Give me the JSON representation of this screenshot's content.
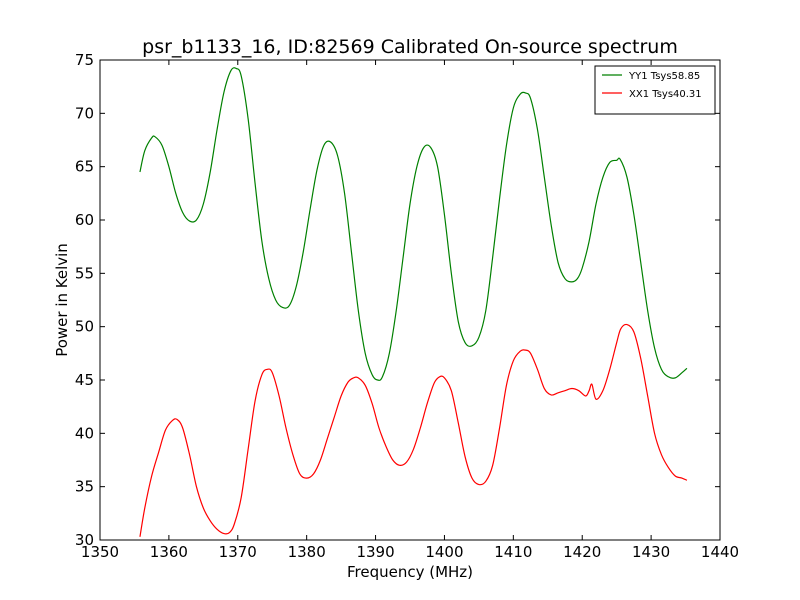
{
  "chart_data": {
    "type": "line",
    "title": "psr_b1133_16, ID:82569 Calibrated On-source spectrum",
    "xlabel": "Frequency (MHz)",
    "ylabel": "Power in Kelvin",
    "xlim": [
      1350,
      1440
    ],
    "ylim": [
      30,
      75
    ],
    "xticks": [
      1350,
      1360,
      1370,
      1380,
      1390,
      1400,
      1410,
      1420,
      1430,
      1440
    ],
    "yticks": [
      30,
      35,
      40,
      45,
      50,
      55,
      60,
      65,
      70,
      75
    ],
    "grid": false,
    "legend_position": "top-right",
    "series": [
      {
        "name": "YY1 Tsys58.85",
        "color": "#008000",
        "x": [
          1355.8,
          1356.5,
          1357.5,
          1358.0,
          1359.0,
          1360.0,
          1361.0,
          1362.0,
          1363.0,
          1364.0,
          1365.0,
          1366.0,
          1367.0,
          1368.0,
          1369.0,
          1369.8,
          1370.5,
          1371.5,
          1372.5,
          1373.5,
          1374.5,
          1375.5,
          1376.5,
          1377.5,
          1378.5,
          1379.5,
          1380.5,
          1381.5,
          1382.5,
          1383.5,
          1384.5,
          1385.5,
          1386.5,
          1387.5,
          1388.5,
          1389.5,
          1390.3,
          1391.0,
          1392.0,
          1393.0,
          1394.0,
          1395.0,
          1396.0,
          1397.0,
          1398.0,
          1399.0,
          1400.0,
          1401.0,
          1402.0,
          1403.0,
          1404.0,
          1405.0,
          1406.0,
          1407.0,
          1408.0,
          1409.0,
          1410.0,
          1411.0,
          1411.8,
          1412.5,
          1413.5,
          1414.5,
          1415.5,
          1416.5,
          1417.5,
          1418.5,
          1419.3,
          1420.0,
          1421.0,
          1422.0,
          1423.0,
          1424.0,
          1425.0,
          1425.5,
          1426.5,
          1427.5,
          1428.5,
          1429.5,
          1430.5,
          1431.5,
          1432.5,
          1433.5,
          1434.5,
          1435.2
        ],
        "y": [
          64.5,
          66.5,
          67.7,
          67.8,
          67.0,
          65.0,
          62.5,
          60.7,
          59.9,
          60.0,
          61.5,
          64.5,
          68.5,
          72.0,
          74.0,
          74.2,
          73.5,
          69.5,
          63.5,
          58.0,
          54.5,
          52.5,
          51.8,
          52.0,
          53.8,
          57.0,
          61.0,
          64.7,
          67.0,
          67.3,
          66.0,
          62.5,
          57.0,
          51.5,
          47.5,
          45.5,
          45.0,
          45.3,
          47.5,
          51.5,
          56.5,
          61.5,
          65.0,
          66.8,
          66.8,
          65.0,
          60.5,
          55.0,
          50.5,
          48.5,
          48.2,
          49.0,
          51.5,
          56.5,
          62.0,
          67.0,
          70.5,
          71.8,
          71.9,
          71.4,
          68.5,
          64.0,
          59.5,
          56.0,
          54.5,
          54.2,
          54.5,
          55.5,
          58.0,
          61.5,
          64.0,
          65.4,
          65.6,
          65.7,
          64.0,
          60.5,
          56.0,
          51.5,
          48.0,
          46.0,
          45.3,
          45.2,
          45.7,
          46.1
        ]
      },
      {
        "name": "XX1 Tsys40.31",
        "color": "#ff0000",
        "x": [
          1355.8,
          1356.5,
          1357.5,
          1358.5,
          1359.5,
          1360.5,
          1361.2,
          1362.0,
          1363.0,
          1364.0,
          1365.0,
          1366.0,
          1367.0,
          1368.0,
          1368.8,
          1369.5,
          1370.5,
          1371.5,
          1372.5,
          1373.5,
          1374.3,
          1375.0,
          1376.0,
          1377.0,
          1378.0,
          1379.0,
          1380.0,
          1381.0,
          1382.0,
          1383.0,
          1384.0,
          1385.0,
          1386.0,
          1386.8,
          1387.5,
          1388.5,
          1389.5,
          1390.5,
          1391.5,
          1392.5,
          1393.5,
          1394.5,
          1395.5,
          1396.5,
          1397.5,
          1398.5,
          1399.3,
          1400.0,
          1401.0,
          1402.0,
          1403.0,
          1404.0,
          1405.0,
          1406.0,
          1407.0,
          1408.0,
          1409.0,
          1410.0,
          1411.0,
          1411.8,
          1412.5,
          1413.5,
          1414.5,
          1415.5,
          1416.5,
          1417.5,
          1418.5,
          1419.5,
          1420.5,
          1421.0,
          1421.4,
          1422.0,
          1423.0,
          1424.0,
          1425.0,
          1425.6,
          1426.5,
          1427.5,
          1428.5,
          1429.5,
          1430.5,
          1431.5,
          1432.5,
          1433.5,
          1434.5,
          1435.2
        ],
        "y": [
          30.3,
          33.0,
          36.0,
          38.2,
          40.3,
          41.2,
          41.3,
          40.5,
          38.0,
          35.0,
          33.0,
          31.8,
          31.0,
          30.6,
          30.7,
          31.5,
          34.0,
          38.5,
          43.0,
          45.5,
          46.0,
          45.7,
          43.5,
          40.5,
          38.0,
          36.2,
          35.8,
          36.2,
          37.5,
          39.5,
          41.5,
          43.5,
          44.8,
          45.2,
          45.2,
          44.5,
          42.8,
          40.5,
          38.8,
          37.5,
          37.0,
          37.3,
          38.5,
          40.5,
          42.8,
          44.7,
          45.3,
          45.2,
          44.0,
          41.0,
          37.8,
          35.8,
          35.2,
          35.5,
          37.0,
          40.5,
          44.5,
          46.8,
          47.7,
          47.8,
          47.5,
          46.0,
          44.2,
          43.6,
          43.8,
          44.0,
          44.2,
          44.0,
          43.5,
          44.0,
          44.6,
          43.2,
          44.0,
          46.0,
          48.5,
          49.8,
          50.2,
          49.5,
          47.0,
          43.5,
          40.0,
          38.0,
          36.8,
          36.0,
          35.8,
          35.6
        ]
      }
    ]
  }
}
